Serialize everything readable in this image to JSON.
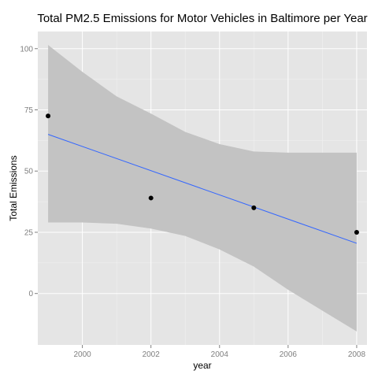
{
  "chart_data": {
    "type": "scatter",
    "title": "Total PM2.5 Emissions for Motor Vehicles in Baltimore per Year",
    "xlabel": "year",
    "ylabel": "Total Emissions",
    "xlim": [
      1998.7,
      2008.3
    ],
    "ylim": [
      -21,
      107
    ],
    "x_ticks": [
      2000,
      2002,
      2004,
      2006,
      2008
    ],
    "x_tick_labels": [
      "2000",
      "2002",
      "2004",
      "2006",
      "2008"
    ],
    "y_ticks": [
      0,
      25,
      50,
      75,
      100
    ],
    "y_tick_labels": [
      "0",
      "25",
      "50",
      "75",
      "100"
    ],
    "grid": true,
    "legend": "none",
    "points": {
      "x": [
        1999,
        2002,
        2005,
        2008
      ],
      "y": [
        72.5,
        39,
        35,
        25
      ]
    },
    "fit": {
      "method": "linear regression",
      "x": [
        1999,
        2008
      ],
      "y": [
        65,
        20.5
      ]
    },
    "confidence_band": {
      "x": [
        1999,
        2000,
        2001,
        2002,
        2003,
        2004,
        2005,
        2006,
        2007,
        2008
      ],
      "upper": [
        101.5,
        90.5,
        80.5,
        73.5,
        66,
        61,
        58,
        57.5,
        57.5,
        57.5
      ],
      "lower": [
        29,
        29,
        28.5,
        26.5,
        23.5,
        18,
        11,
        1.5,
        -7,
        -15.5
      ]
    },
    "colors": {
      "panel_background": "#e5e5e5",
      "grid_major": "#ffffff",
      "grid_minor": "#f2f2f2",
      "band": "#c3c3c3",
      "fit_line": "#3366ff",
      "points": "#000000"
    }
  }
}
